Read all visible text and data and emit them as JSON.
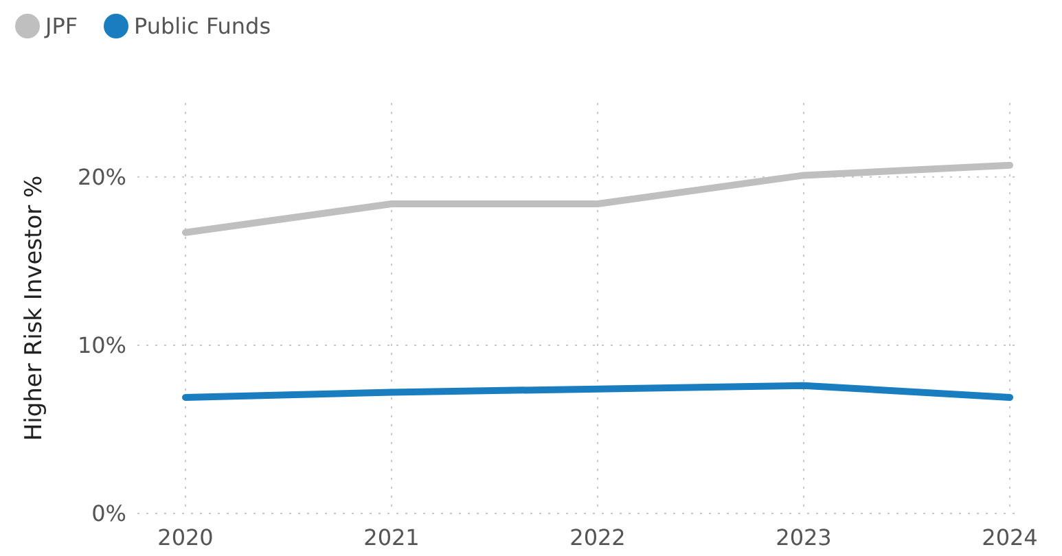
{
  "chart_data": {
    "type": "line",
    "ylabel": "Higher Risk Investor %",
    "categories": [
      "2020",
      "2021",
      "2022",
      "2023",
      "2024"
    ],
    "series": [
      {
        "name": "JPF",
        "color": "#bfbfbf",
        "values": [
          16.7,
          18.4,
          18.4,
          20.1,
          20.7
        ]
      },
      {
        "name": "Public Funds",
        "color": "#1a7dc0",
        "values": [
          6.9,
          7.2,
          7.4,
          7.6,
          6.9
        ]
      }
    ],
    "ylim": [
      0,
      24.4
    ],
    "yticks": [
      {
        "value": 0,
        "label": "0%"
      },
      {
        "value": 10,
        "label": "10%"
      },
      {
        "value": 20,
        "label": "20%"
      }
    ],
    "grid": true,
    "legend": "top left",
    "marker": "none",
    "line_style": "solid"
  }
}
